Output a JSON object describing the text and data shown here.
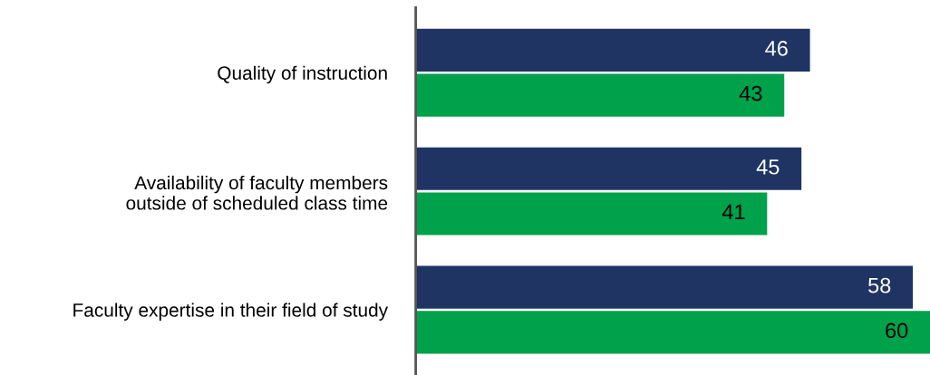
{
  "chart_data": {
    "type": "bar",
    "orientation": "horizontal",
    "categories": [
      "Quality of instruction",
      "Availability of faculty members\noutside of scheduled class time",
      "Faculty expertise in their field of study"
    ],
    "series": [
      {
        "color": "#1f3462",
        "values": [
          46,
          45,
          58
        ]
      },
      {
        "color": "#00a14b",
        "values": [
          43,
          41,
          60
        ]
      }
    ],
    "data_labels": true,
    "tick_labels": "y",
    "grid": false,
    "legend": false
  }
}
